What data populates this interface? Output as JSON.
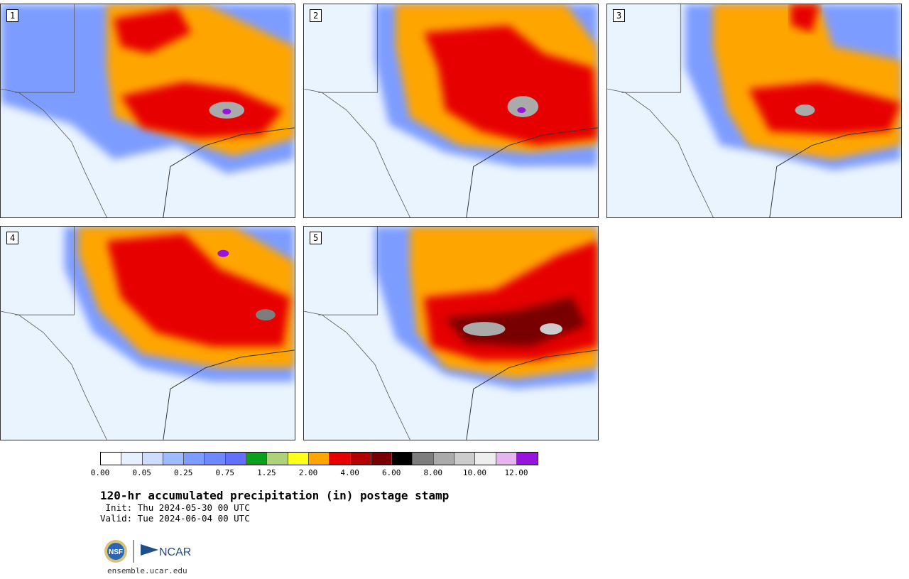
{
  "panels": [
    {
      "label": "1"
    },
    {
      "label": "2"
    },
    {
      "label": "3"
    },
    {
      "label": "4"
    },
    {
      "label": "5"
    }
  ],
  "colorbar": {
    "colors": [
      "#ffffff",
      "#e6f0ff",
      "#cddcff",
      "#9cbcff",
      "#7d9cff",
      "#6e88ff",
      "#6170ff",
      "#0aa01e",
      "#aed27a",
      "#ffff19",
      "#ffa500",
      "#e60000",
      "#b40000",
      "#780000",
      "#000000",
      "#7d7d7d",
      "#aaaaaa",
      "#cccccc",
      "#eeeeee",
      "#e6b4f0",
      "#9614dc"
    ],
    "ticks": [
      "0.00",
      "0.05",
      "0.25",
      "0.75",
      "1.25",
      "2.00",
      "4.00",
      "6.00",
      "8.00",
      "10.00",
      "12.00"
    ]
  },
  "title": "120-hr accumulated precipitation (in) postage stamp",
  "init": " Init: Thu 2024-05-30 00 UTC",
  "valid": "Valid: Tue 2024-06-04 00 UTC",
  "logo": {
    "nsf": "NSF",
    "ncar": "NCAR"
  },
  "url": "ensemble.ucar.edu"
}
